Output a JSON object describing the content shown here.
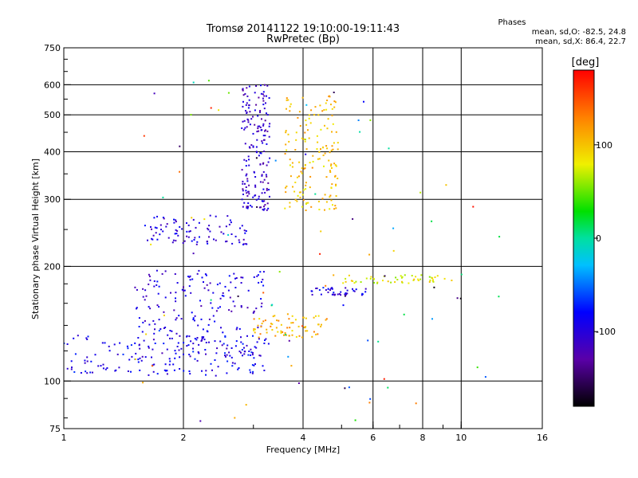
{
  "chart_data": {
    "type": "scatter",
    "title": "Tromsø 20141122 19:10:00-19:11:43",
    "subtitle": "RwPretec (Bp)",
    "xlabel": "Frequency [MHz]",
    "ylabel": "Stationary phase Virtual Height [km]",
    "x_scale": "log",
    "y_scale": "log",
    "xlim": [
      1,
      16
    ],
    "ylim": [
      75,
      750
    ],
    "x_ticks": [
      1,
      2,
      4,
      6,
      8,
      10,
      16
    ],
    "x_tick_labels": [
      "1",
      "2",
      "4",
      "6",
      "8",
      "10",
      "16"
    ],
    "y_ticks": [
      75,
      100,
      200,
      300,
      400,
      500,
      600,
      750
    ],
    "y_tick_labels": [
      "75",
      "100",
      "200",
      "300",
      "400",
      "500",
      "600",
      "750"
    ],
    "grid_x": [
      2,
      4,
      6,
      8,
      10
    ],
    "grid_y": [
      100,
      200,
      300,
      400,
      500,
      600
    ],
    "legend": {
      "title": "Phases",
      "line1": "mean, sd,O: -82.5, 24.8",
      "line2": "mean, sd,X: 86.4, 22.7"
    },
    "colorbar": {
      "unit": "[deg]",
      "range": [
        -180,
        180
      ],
      "ticks": [
        100,
        0,
        -100
      ],
      "tick_labels": [
        "100",
        "0",
        "-100"
      ]
    },
    "traces": [
      {
        "name": "O-mode lower trace",
        "x_range": [
          1.0,
          3.3
        ],
        "h_range": [
          103,
          132
        ],
        "phase": -90,
        "n": 160
      },
      {
        "name": "O-mode lower spread",
        "x_range": [
          1.5,
          3.2
        ],
        "h_range": [
          115,
          195
        ],
        "phase": -100,
        "n": 200
      },
      {
        "name": "X-mode lower trace",
        "x_range": [
          3.0,
          4.6
        ],
        "h_range": [
          130,
          150
        ],
        "phase": 110,
        "n": 70
      },
      {
        "name": "O-mode upper trace",
        "x_range": [
          1.6,
          2.9
        ],
        "h_range": [
          228,
          272
        ],
        "phase": -100,
        "n": 90
      },
      {
        "name": "O-mode F-cusp",
        "x_range": [
          2.8,
          3.3
        ],
        "h_range": [
          280,
          600
        ],
        "phase": -110,
        "n": 180
      },
      {
        "name": "X-mode F-cusp",
        "x_range": [
          3.6,
          4.9
        ],
        "h_range": [
          280,
          560
        ],
        "phase": 100,
        "n": 160
      },
      {
        "name": "Sporadic 185 km",
        "x_range": [
          5.0,
          9.5
        ],
        "h_range": [
          180,
          190
        ],
        "phase": 80,
        "n": 50
      },
      {
        "name": "Sporadic 170 km",
        "x_range": [
          4.2,
          5.8
        ],
        "h_range": [
          168,
          176
        ],
        "phase": -95,
        "n": 40
      },
      {
        "name": "Noise",
        "x_range": [
          1.5,
          12.5
        ],
        "h_range": [
          78,
          620
        ],
        "phase": 0,
        "n": 90
      }
    ]
  }
}
